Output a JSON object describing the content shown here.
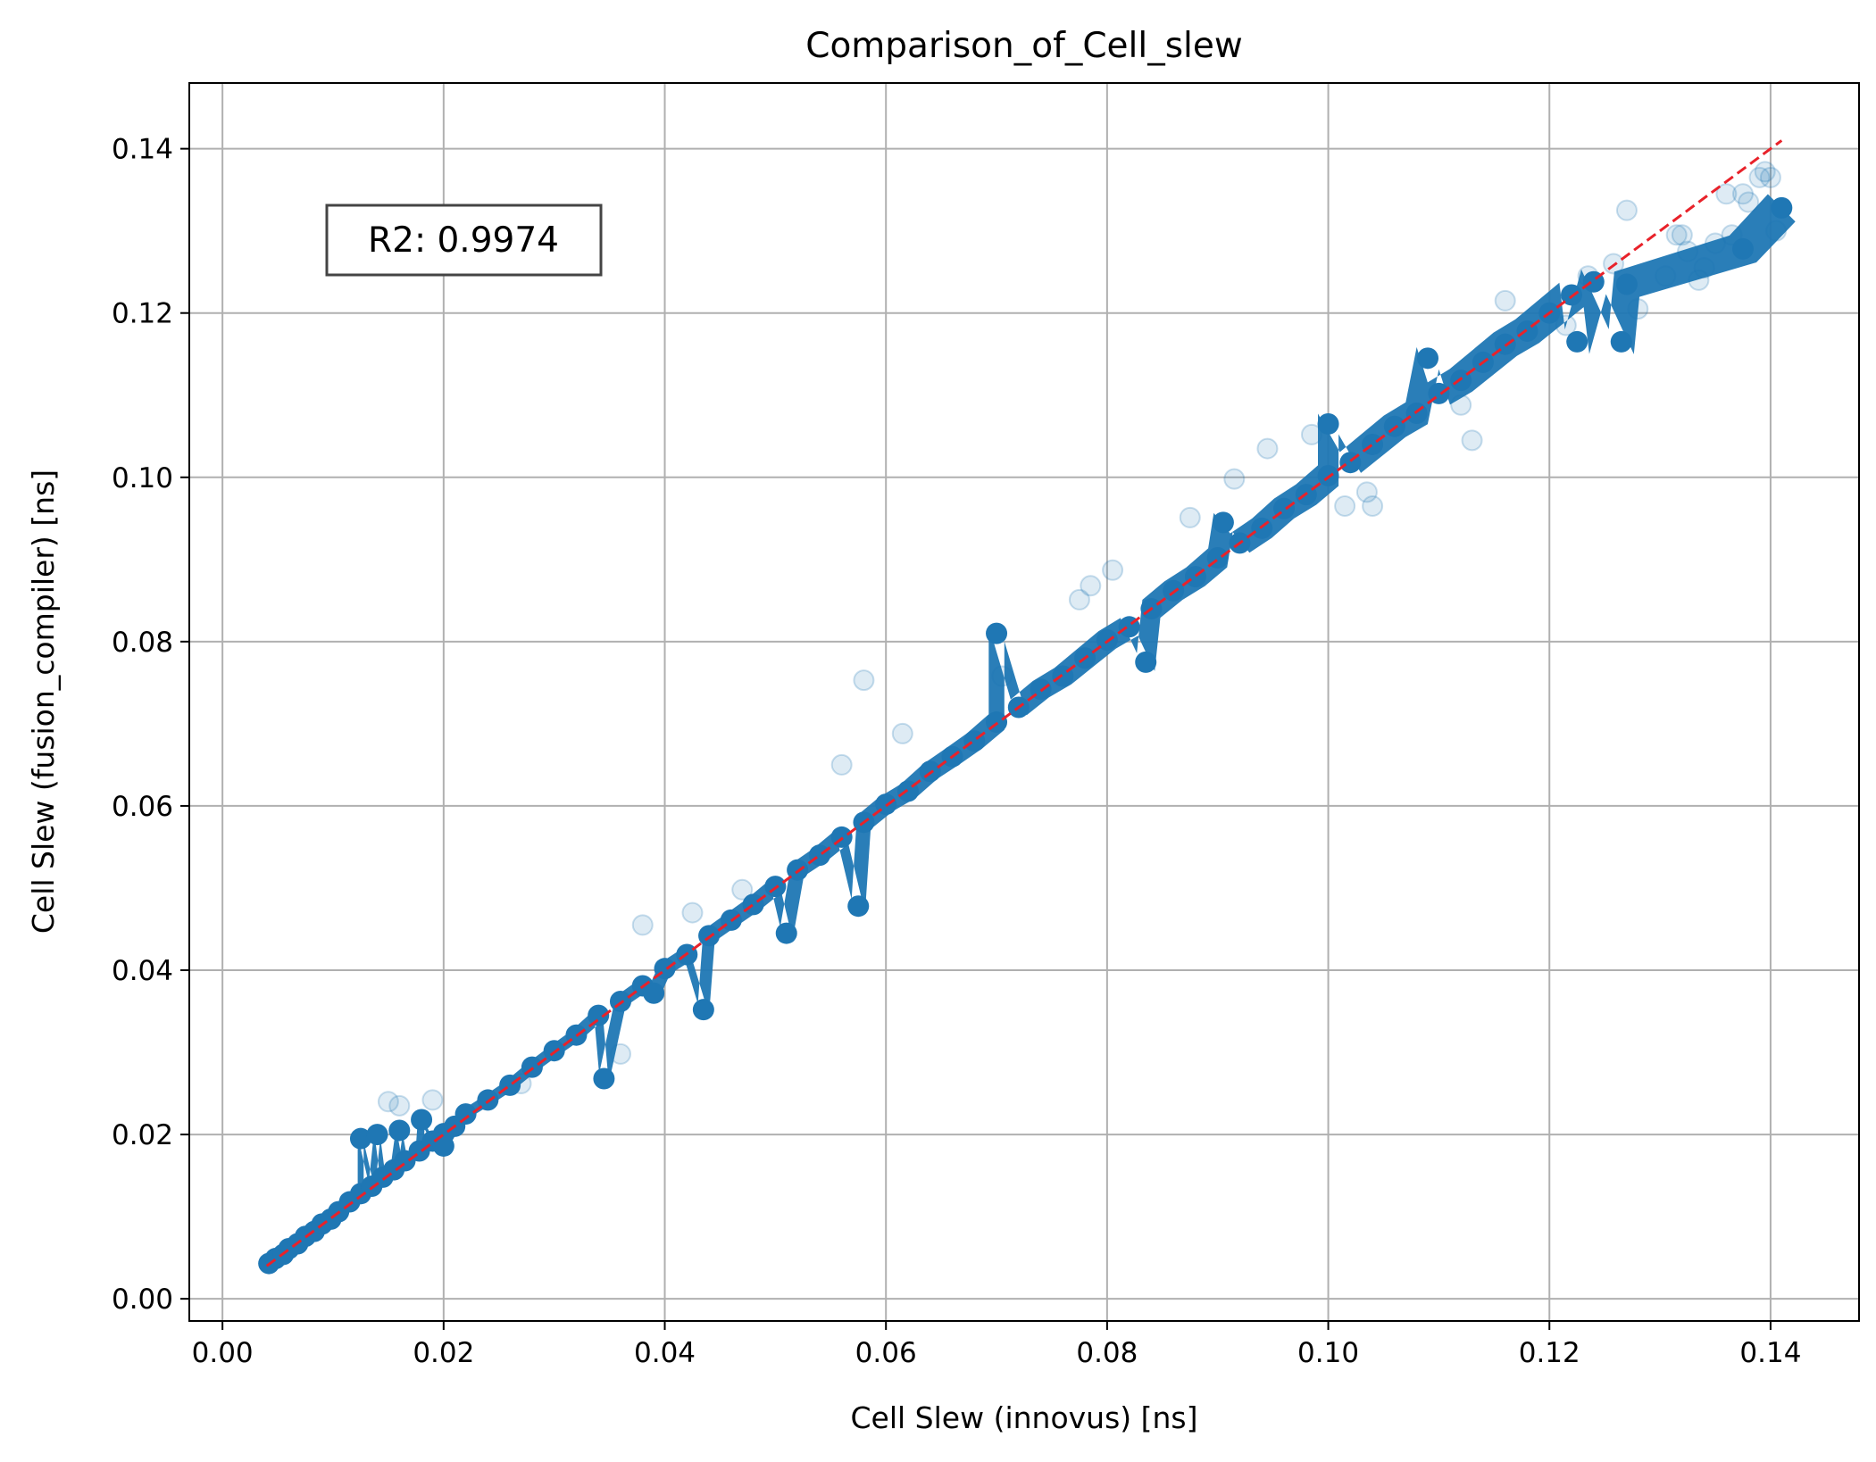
{
  "chart_data": {
    "type": "scatter",
    "title": "Comparison_of_Cell_slew",
    "xlabel": "Cell Slew (innovus) [ns]",
    "ylabel": "Cell Slew (fusion_compiler) [ns]",
    "xlim": [
      -0.003,
      0.148
    ],
    "ylim": [
      -0.0027,
      0.148
    ],
    "xticks": [
      0.0,
      0.02,
      0.04,
      0.06,
      0.08,
      0.1,
      0.12,
      0.14
    ],
    "xtick_labels": [
      "0.00",
      "0.02",
      "0.04",
      "0.06",
      "0.08",
      "0.10",
      "0.12",
      "0.14"
    ],
    "yticks": [
      0.0,
      0.02,
      0.04,
      0.06,
      0.08,
      0.1,
      0.12,
      0.14
    ],
    "ytick_labels": [
      "0.00",
      "0.02",
      "0.04",
      "0.06",
      "0.08",
      "0.10",
      "0.12",
      "0.14"
    ],
    "grid": true,
    "annotation": "R2: 0.9974",
    "series": [
      {
        "color": "#1f77b4",
        "points": [
          [
            0.0042,
            0.0043
          ],
          [
            0.0048,
            0.0049
          ],
          [
            0.0055,
            0.0054
          ],
          [
            0.006,
            0.0061
          ],
          [
            0.0068,
            0.0067
          ],
          [
            0.0075,
            0.0076
          ],
          [
            0.0083,
            0.0082
          ],
          [
            0.009,
            0.0091
          ],
          [
            0.0098,
            0.0097
          ],
          [
            0.0105,
            0.0106
          ],
          [
            0.0115,
            0.0118
          ],
          [
            0.0125,
            0.0128
          ],
          [
            0.0135,
            0.0137
          ],
          [
            0.0145,
            0.0148
          ],
          [
            0.0155,
            0.0157
          ],
          [
            0.0165,
            0.0168
          ],
          [
            0.0178,
            0.018
          ],
          [
            0.019,
            0.0192
          ],
          [
            0.02,
            0.0201
          ],
          [
            0.021,
            0.021
          ],
          [
            0.0125,
            0.0195
          ],
          [
            0.014,
            0.02
          ],
          [
            0.016,
            0.0205
          ],
          [
            0.018,
            0.0218
          ],
          [
            0.02,
            0.0186
          ],
          [
            0.022,
            0.0225
          ],
          [
            0.024,
            0.0242
          ],
          [
            0.026,
            0.026
          ],
          [
            0.028,
            0.0282
          ],
          [
            0.03,
            0.0302
          ],
          [
            0.032,
            0.0321
          ],
          [
            0.0345,
            0.0268
          ],
          [
            0.034,
            0.0345
          ],
          [
            0.036,
            0.0362
          ],
          [
            0.038,
            0.0381
          ],
          [
            0.039,
            0.0372
          ],
          [
            0.0435,
            0.0352
          ],
          [
            0.04,
            0.0402
          ],
          [
            0.042,
            0.0419
          ],
          [
            0.044,
            0.0442
          ],
          [
            0.046,
            0.0461
          ],
          [
            0.048,
            0.048
          ],
          [
            0.05,
            0.0502
          ],
          [
            0.051,
            0.0445
          ],
          [
            0.052,
            0.0522
          ],
          [
            0.054,
            0.054
          ],
          [
            0.056,
            0.0562
          ],
          [
            0.0575,
            0.0478
          ],
          [
            0.058,
            0.058
          ],
          [
            0.06,
            0.0602
          ],
          [
            0.062,
            0.0618
          ],
          [
            0.064,
            0.0642
          ],
          [
            0.066,
            0.066
          ],
          [
            0.068,
            0.0679
          ],
          [
            0.07,
            0.0702
          ],
          [
            0.072,
            0.072
          ],
          [
            0.07,
            0.081
          ],
          [
            0.074,
            0.0742
          ],
          [
            0.076,
            0.0758
          ],
          [
            0.078,
            0.078
          ],
          [
            0.08,
            0.0802
          ],
          [
            0.082,
            0.0818
          ],
          [
            0.084,
            0.084
          ],
          [
            0.0835,
            0.0775
          ],
          [
            0.086,
            0.0862
          ],
          [
            0.088,
            0.0879
          ],
          [
            0.09,
            0.0902
          ],
          [
            0.0905,
            0.0945
          ],
          [
            0.092,
            0.092
          ],
          [
            0.094,
            0.0938
          ],
          [
            0.096,
            0.0962
          ],
          [
            0.098,
            0.0979
          ],
          [
            0.1,
            0.1002
          ],
          [
            0.1,
            0.1065
          ],
          [
            0.102,
            0.1018
          ],
          [
            0.104,
            0.104
          ],
          [
            0.106,
            0.1062
          ],
          [
            0.108,
            0.1078
          ],
          [
            0.109,
            0.1145
          ],
          [
            0.11,
            0.1102
          ],
          [
            0.112,
            0.1118
          ],
          [
            0.114,
            0.114
          ],
          [
            0.116,
            0.1162
          ],
          [
            0.118,
            0.1178
          ],
          [
            0.12,
            0.12
          ],
          [
            0.122,
            0.1222
          ],
          [
            0.1225,
            0.1165
          ],
          [
            0.124,
            0.1238
          ],
          [
            0.1265,
            0.1165
          ],
          [
            0.127,
            0.1235
          ],
          [
            0.141,
            0.1328
          ],
          [
            0.1375,
            0.1278
          ]
        ]
      },
      {
        "color": "#1f77b4",
        "alpha": 0.15,
        "points": [
          [
            0.015,
            0.024
          ],
          [
            0.016,
            0.0235
          ],
          [
            0.019,
            0.0242
          ],
          [
            0.027,
            0.0262
          ],
          [
            0.036,
            0.0298
          ],
          [
            0.038,
            0.0455
          ],
          [
            0.0425,
            0.047
          ],
          [
            0.047,
            0.0498
          ],
          [
            0.056,
            0.065
          ],
          [
            0.058,
            0.0753
          ],
          [
            0.0615,
            0.0688
          ],
          [
            0.0705,
            0.0758
          ],
          [
            0.0775,
            0.0851
          ],
          [
            0.0785,
            0.0868
          ],
          [
            0.0805,
            0.0887
          ],
          [
            0.0875,
            0.0951
          ],
          [
            0.0915,
            0.0998
          ],
          [
            0.0945,
            0.1035
          ],
          [
            0.0985,
            0.1052
          ],
          [
            0.1015,
            0.0965
          ],
          [
            0.104,
            0.0965
          ],
          [
            0.1035,
            0.0982
          ],
          [
            0.112,
            0.1088
          ],
          [
            0.113,
            0.1045
          ],
          [
            0.116,
            0.1215
          ],
          [
            0.1215,
            0.1185
          ],
          [
            0.1235,
            0.1245
          ],
          [
            0.1258,
            0.126
          ],
          [
            0.127,
            0.1325
          ],
          [
            0.128,
            0.1205
          ],
          [
            0.1305,
            0.1245
          ],
          [
            0.1315,
            0.1295
          ],
          [
            0.132,
            0.1295
          ],
          [
            0.1325,
            0.1275
          ],
          [
            0.1335,
            0.124
          ],
          [
            0.134,
            0.1255
          ],
          [
            0.135,
            0.1285
          ],
          [
            0.136,
            0.1345
          ],
          [
            0.1365,
            0.1295
          ],
          [
            0.1375,
            0.1345
          ],
          [
            0.138,
            0.1335
          ],
          [
            0.139,
            0.1365
          ],
          [
            0.1395,
            0.1372
          ],
          [
            0.14,
            0.1365
          ],
          [
            0.1405,
            0.13
          ]
        ]
      },
      {
        "type": "line",
        "style": "dashed",
        "color": "#e8222a",
        "points": [
          [
            0.004,
            0.004
          ],
          [
            0.141,
            0.141
          ]
        ]
      }
    ]
  }
}
